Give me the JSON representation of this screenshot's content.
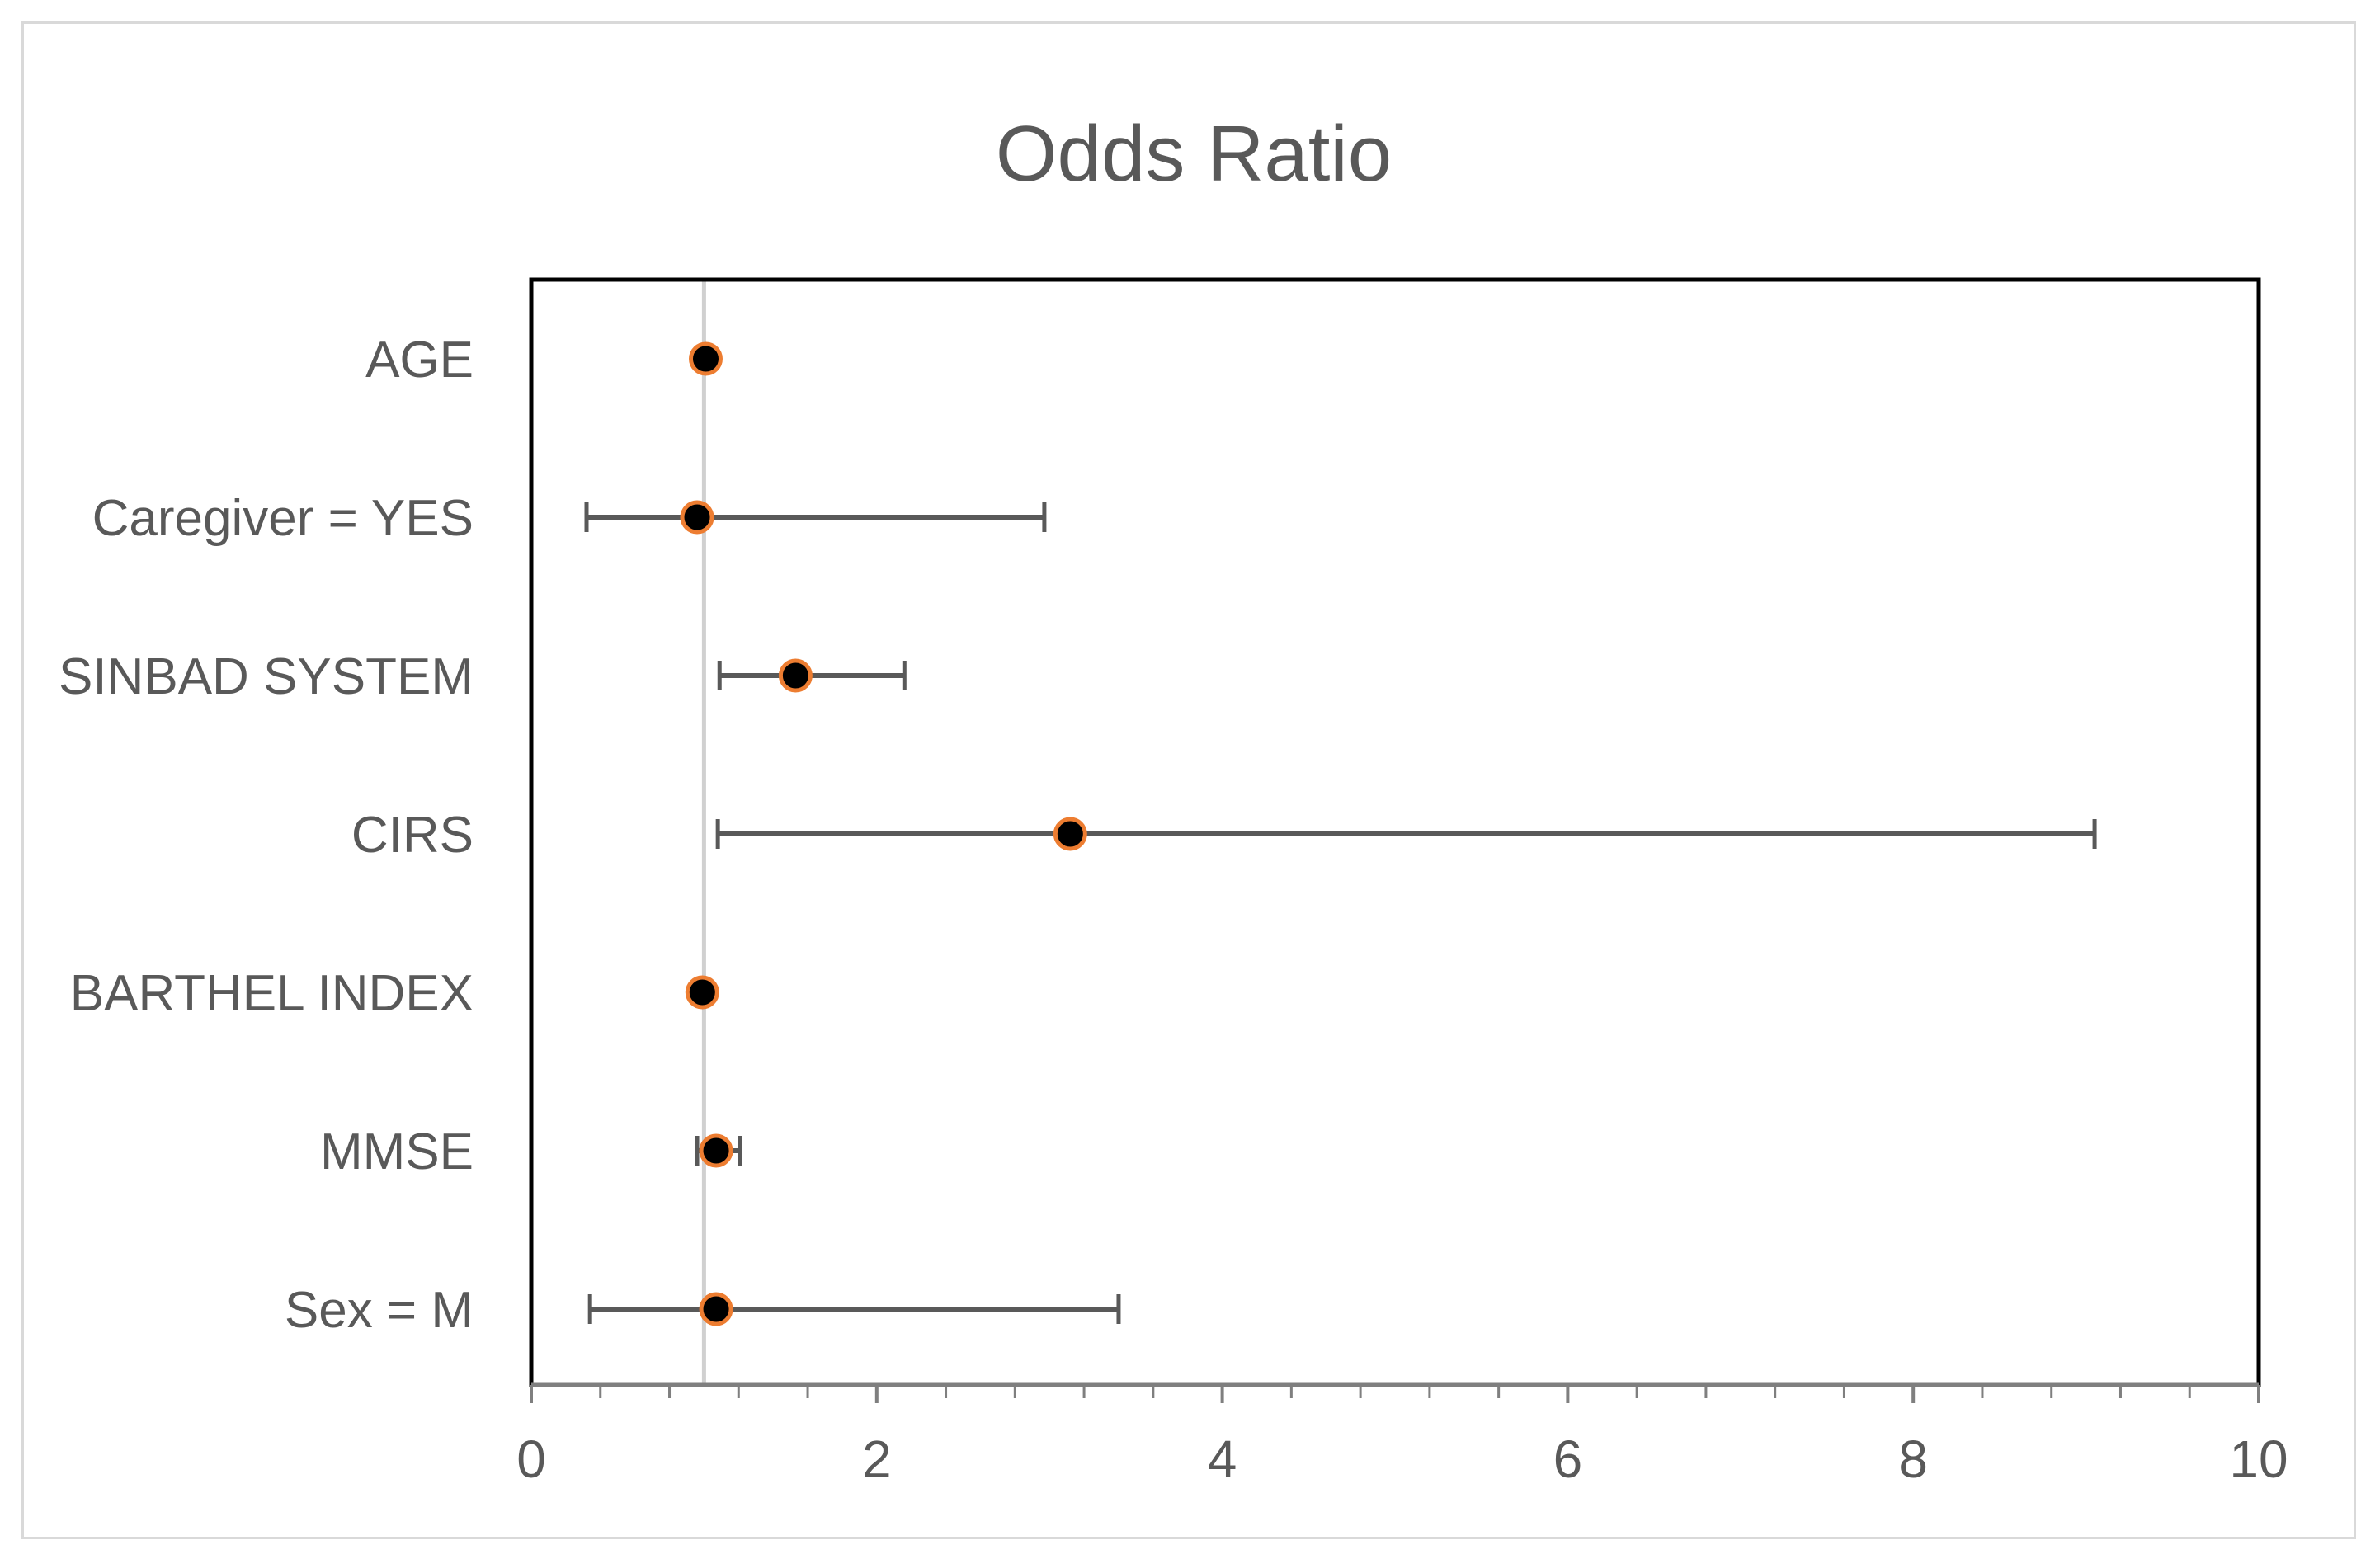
{
  "chart_data": {
    "type": "forest",
    "title": "Odds Ratio",
    "xlabel": "",
    "ylabel": "",
    "xlim": [
      0,
      10
    ],
    "x_ticks": [
      0,
      2,
      4,
      6,
      8,
      10
    ],
    "x_minor_step": 0.4,
    "reference_line": 1,
    "grid": false,
    "legend": "none",
    "rows": [
      {
        "label": "AGE",
        "or": 1.01,
        "ci_low": null,
        "ci_high": null
      },
      {
        "label": "Caregiver = YES",
        "or": 0.96,
        "ci_low": 0.32,
        "ci_high": 2.97
      },
      {
        "label": "SINBAD SYSTEM",
        "or": 1.53,
        "ci_low": 1.09,
        "ci_high": 2.16
      },
      {
        "label": "CIRS",
        "or": 3.12,
        "ci_low": 1.08,
        "ci_high": 9.05
      },
      {
        "label": "BARTHEL INDEX",
        "or": 0.99,
        "ci_low": null,
        "ci_high": null
      },
      {
        "label": "MMSE",
        "or": 1.07,
        "ci_low": 0.96,
        "ci_high": 1.21
      },
      {
        "label": "Sex = M",
        "or": 1.07,
        "ci_low": 0.34,
        "ci_high": 3.4
      }
    ],
    "colors": {
      "marker_fill": "#000000",
      "marker_edge": "#ED7D31",
      "error_bar": "#595959",
      "reference_line": "#d0d0d0",
      "plot_border": "#000000",
      "text": "#595959"
    }
  }
}
